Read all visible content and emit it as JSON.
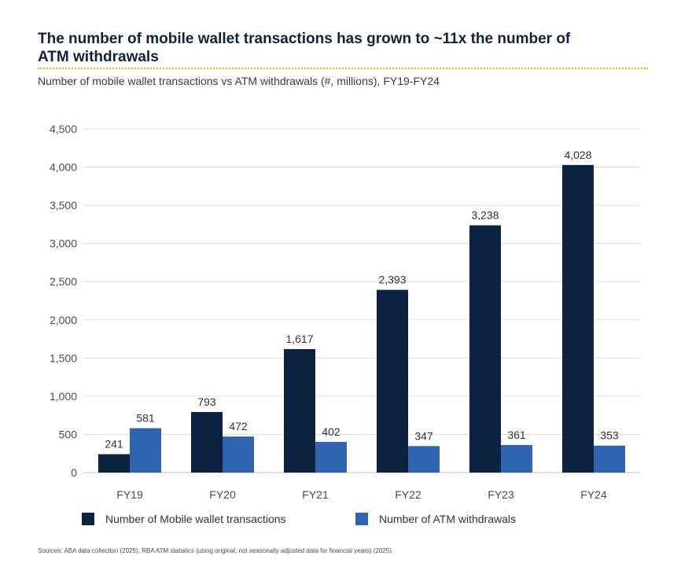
{
  "header": {
    "title": "The number of mobile wallet transactions has grown to ~11x the number of ATM withdrawals",
    "subtitle": "Number of mobile wallet transactions vs ATM withdrawals (#, millions), FY19-FY24"
  },
  "footer": {
    "source": "Sources: ABA data collection (2025), RBA ATM statistics (using original, not seasonally adjusted data for financial years) (2025)."
  },
  "colors": {
    "mobile": "#0b2340",
    "atm": "#2e64b0",
    "grid": "#d9dde2",
    "axis_text": "#444c55"
  },
  "chart_data": {
    "type": "bar",
    "categories": [
      "FY19",
      "FY20",
      "FY21",
      "FY22",
      "FY23",
      "FY24"
    ],
    "series": [
      {
        "name": "Number of Mobile wallet transactions",
        "values": [
          241,
          793,
          1617,
          2393,
          3238,
          4028
        ]
      },
      {
        "name": "Number of ATM withdrawals",
        "values": [
          581,
          472,
          402,
          347,
          361,
          353
        ]
      }
    ],
    "ylim": [
      0,
      4500
    ],
    "yticks": [
      0,
      500,
      1000,
      1500,
      2000,
      2500,
      3000,
      3500,
      4000,
      4500
    ],
    "ytick_labels": [
      "0",
      "500",
      "1,000",
      "1,500",
      "2,000",
      "2,500",
      "3,000",
      "3,500",
      "4,000",
      "4,500"
    ],
    "value_labels": [
      [
        "241",
        "793",
        "1,617",
        "2,393",
        "3,238",
        "4,028"
      ],
      [
        "581",
        "472",
        "402",
        "347",
        "361",
        "353"
      ]
    ],
    "grid": true,
    "legend": "bottom"
  }
}
